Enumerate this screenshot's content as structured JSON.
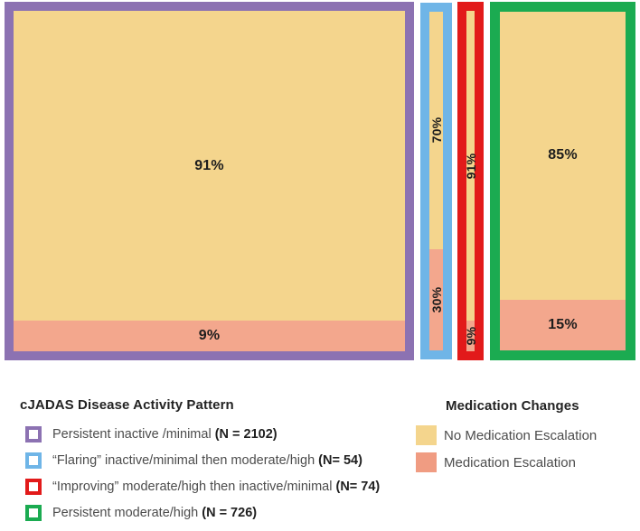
{
  "chart_data": {
    "type": "bar",
    "variant": "mosaic / 100%-stacked columns (variable width)",
    "title": "",
    "xlabel": "",
    "ylabel": "",
    "axes_shown": false,
    "grid": false,
    "legend_position": "bottom",
    "categories": [
      "Persistent inactive /minimal",
      "“Flaring” inactive/minimal then moderate/high",
      "“Improving” moderate/high then inactive/minimal",
      "Persistent moderate/high"
    ],
    "category_n": [
      2102,
      54,
      74,
      726
    ],
    "series": [
      {
        "name": "No Medication Escalation",
        "color": "#F4D58D",
        "values": [
          91,
          70,
          91,
          85
        ]
      },
      {
        "name": "Medication Escalation",
        "color": "#F3A78D",
        "values": [
          9,
          30,
          9,
          15
        ]
      }
    ],
    "bars": [
      {
        "name": "Persistent inactive /minimal",
        "n": 2102,
        "border_color": "#8C72B2",
        "segments": [
          {
            "series": "No Medication Escalation",
            "value": 91,
            "label": "91%"
          },
          {
            "series": "Medication Escalation",
            "value": 9,
            "label": "9%"
          }
        ]
      },
      {
        "name": "“Flaring” inactive/minimal then moderate/high",
        "n": 54,
        "border_color": "#6FB5E7",
        "segments": [
          {
            "series": "No Medication Escalation",
            "value": 70,
            "label": "70%"
          },
          {
            "series": "Medication Escalation",
            "value": 30,
            "label": "30%"
          }
        ]
      },
      {
        "name": "“Improving” moderate/high then inactive/minimal",
        "n": 74,
        "border_color": "#E21A1A",
        "segments": [
          {
            "series": "No Medication Escalation",
            "value": 91,
            "label": "91%"
          },
          {
            "series": "Medication Escalation",
            "value": 9,
            "label": "9%"
          }
        ]
      },
      {
        "name": "Persistent moderate/high",
        "n": 726,
        "border_color": "#1BAB51",
        "segments": [
          {
            "series": "No Medication Escalation",
            "value": 85,
            "label": "85%"
          },
          {
            "series": "Medication Escalation",
            "value": 15,
            "label": "15%"
          }
        ]
      }
    ]
  },
  "legend_left": {
    "title": "cJADAS Disease Activity Pattern",
    "items": [
      {
        "text": "Persistent inactive /minimal ",
        "n": "(N = 2102)",
        "color": "#8C72B2"
      },
      {
        "text": "“Flaring” inactive/minimal then moderate/high ",
        "n": "(N= 54)",
        "color": "#6FB5E7"
      },
      {
        "text": "“Improving” moderate/high then inactive/minimal ",
        "n": "(N= 74)",
        "color": "#E21A1A"
      },
      {
        "text": "Persistent moderate/high ",
        "n": "(N = 726)",
        "color": "#1BAB51"
      }
    ]
  },
  "legend_right": {
    "title": "Medication Changes",
    "items": [
      {
        "label": "No Medication Escalation",
        "color": "#F4D58D"
      },
      {
        "label": "Medication Escalation",
        "color": "#F09C82"
      }
    ]
  },
  "colors": {
    "no_medication_escalation_fill": "#F4D58D",
    "medication_escalation_fill": "#F3A78D",
    "persistent_inactive_border": "#8C72B2",
    "flaring_border": "#6FB5E7",
    "improving_border": "#E21A1A",
    "persistent_moderate_border": "#1BAB51",
    "label_text": "#1d1d1d",
    "legend_text": "#4c4c4c"
  }
}
